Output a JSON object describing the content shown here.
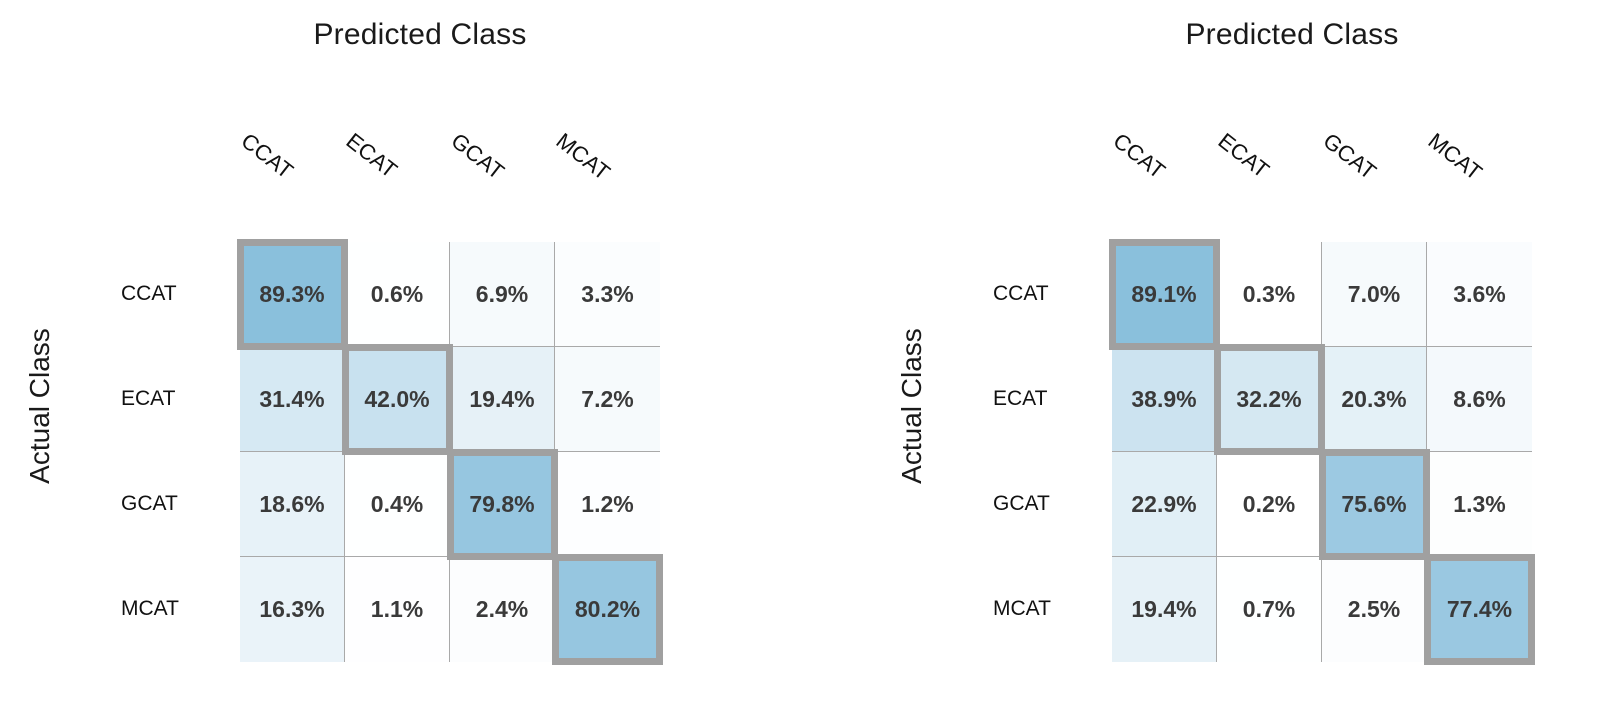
{
  "chart_data": [
    {
      "type": "heatmap",
      "title": "Predicted Class",
      "ylabel": "Actual Class",
      "columns": [
        "CCAT",
        "ECAT",
        "GCAT",
        "MCAT"
      ],
      "rows": [
        "CCAT",
        "ECAT",
        "GCAT",
        "MCAT"
      ],
      "values": [
        [
          89.3,
          0.6,
          6.9,
          3.3
        ],
        [
          31.4,
          42.0,
          19.4,
          7.2
        ],
        [
          18.6,
          0.4,
          79.8,
          1.2
        ],
        [
          16.3,
          1.1,
          2.4,
          80.2
        ]
      ],
      "labels": [
        [
          "89.3%",
          "0.6%",
          "6.9%",
          "3.3%"
        ],
        [
          "31.4%",
          "42.0%",
          "19.4%",
          "7.2%"
        ],
        [
          "18.6%",
          "0.4%",
          "79.8%",
          "1.2%"
        ],
        [
          "16.3%",
          "1.1%",
          "2.4%",
          "80.2%"
        ]
      ],
      "diagonal_highlighted": true,
      "colormap": {
        "low": "#ffffff",
        "high": "#7cb8d8"
      }
    },
    {
      "type": "heatmap",
      "title": "Predicted Class",
      "ylabel": "Actual Class",
      "columns": [
        "CCAT",
        "ECAT",
        "GCAT",
        "MCAT"
      ],
      "rows": [
        "CCAT",
        "ECAT",
        "GCAT",
        "MCAT"
      ],
      "values": [
        [
          89.1,
          0.3,
          7.0,
          3.6
        ],
        [
          38.9,
          32.2,
          20.3,
          8.6
        ],
        [
          22.9,
          0.2,
          75.6,
          1.3
        ],
        [
          19.4,
          0.7,
          2.5,
          77.4
        ]
      ],
      "labels": [
        [
          "89.1%",
          "0.3%",
          "7.0%",
          "3.6%"
        ],
        [
          "38.9%",
          "32.2%",
          "20.3%",
          "8.6%"
        ],
        [
          "22.9%",
          "0.2%",
          "75.6%",
          "1.3%"
        ],
        [
          "19.4%",
          "0.7%",
          "2.5%",
          "77.4%"
        ]
      ],
      "diagonal_highlighted": true,
      "colormap": {
        "low": "#ffffff",
        "high": "#7cb8d8"
      }
    }
  ]
}
